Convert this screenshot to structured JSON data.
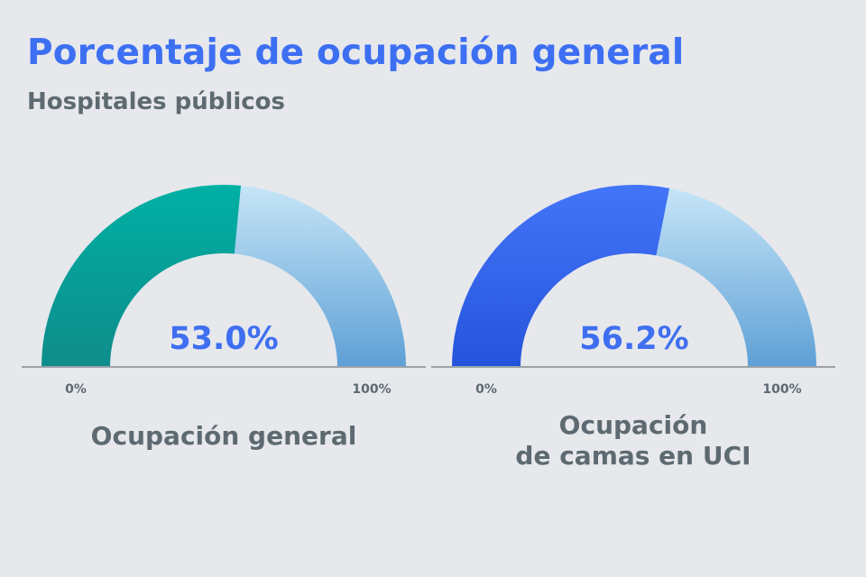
{
  "title": "Porcentaje de ocupación general",
  "subtitle": "Hospitales públicos",
  "colors": {
    "title": "#3d6ff2",
    "text": "#5e6a71",
    "remainder_top": "#c6e5f7",
    "remainder_bottom": "#5ea0d6",
    "gauge1_fill_top": "#00b0a4",
    "gauge1_fill_bottom": "#0f8c8a",
    "gauge2_fill_top": "#4375f8",
    "gauge2_fill_bottom": "#2554dc",
    "value_text": "#3f6ff0"
  },
  "chart_data": [
    {
      "type": "gauge",
      "value": 53.0,
      "value_label": "53.0%",
      "min_label": "0%",
      "max_label": "100%",
      "label_lines": [
        "Ocupación general"
      ],
      "range": [
        0,
        100
      ]
    },
    {
      "type": "gauge",
      "value": 56.2,
      "value_label": "56.2%",
      "min_label": "0%",
      "max_label": "100%",
      "label_lines": [
        "Ocupación",
        "de camas en UCI"
      ],
      "range": [
        0,
        100
      ]
    }
  ]
}
